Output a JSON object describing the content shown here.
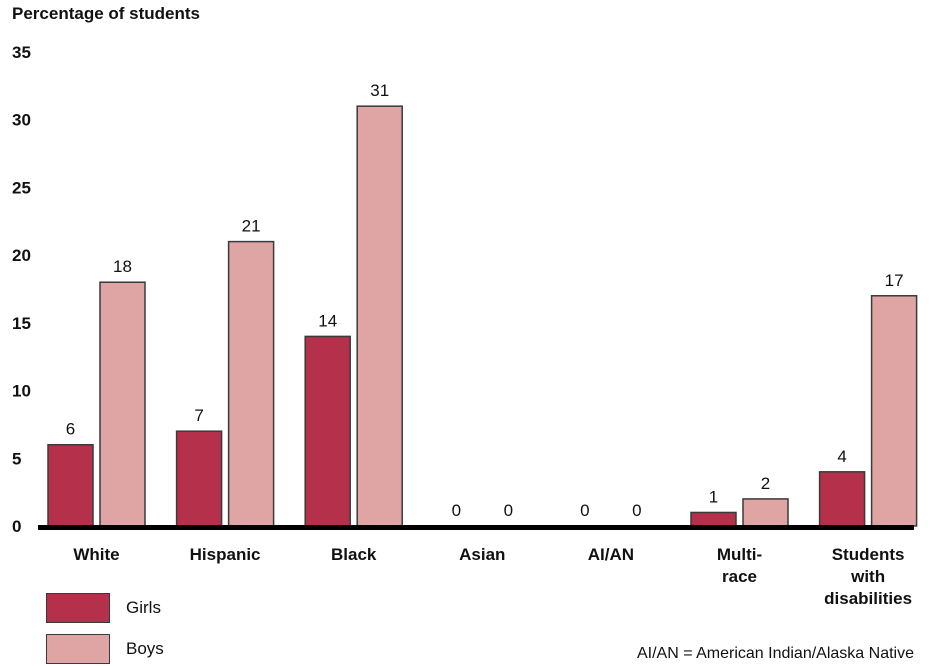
{
  "chart_data": {
    "type": "bar",
    "ylabel": "Percentage of students",
    "ylim": [
      0,
      35
    ],
    "yticks": [
      0,
      5,
      10,
      15,
      20,
      25,
      30,
      35
    ],
    "categories": [
      [
        "White"
      ],
      [
        "Hispanic"
      ],
      [
        "Black"
      ],
      [
        "Asian"
      ],
      [
        "AI/AN"
      ],
      [
        "Multi-",
        "race"
      ],
      [
        "Students",
        "with",
        "disabilities"
      ]
    ],
    "series": [
      {
        "name": "Girls",
        "color": "#b5304a",
        "values": [
          6,
          7,
          14,
          0,
          0,
          1,
          4
        ]
      },
      {
        "name": "Boys",
        "color": "#dea5a4",
        "values": [
          18,
          21,
          31,
          0,
          0,
          2,
          17
        ]
      }
    ],
    "legend": "bottom-left",
    "note": "AI/AN = American Indian/Alaska Native"
  }
}
